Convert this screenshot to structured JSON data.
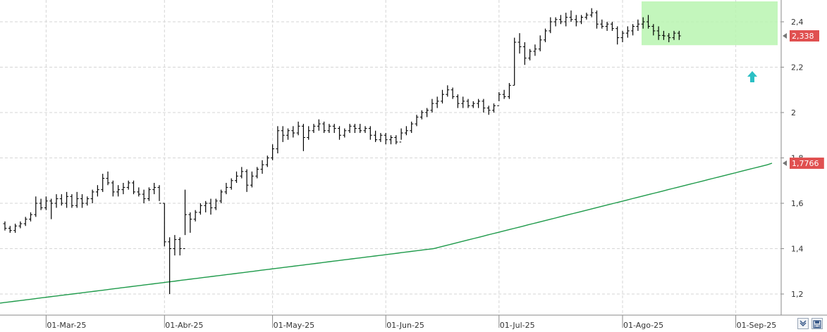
{
  "chart_data": {
    "type": "ohlc",
    "title": "",
    "xlabel": "",
    "ylabel": "",
    "ylim": [
      1.15,
      2.5
    ],
    "y_ticks": [
      {
        "value": 1.2,
        "label": "1,2"
      },
      {
        "value": 1.4,
        "label": "1,4"
      },
      {
        "value": 1.6,
        "label": "1,6"
      },
      {
        "value": 1.8,
        "label": "1,8"
      },
      {
        "value": 2.0,
        "label": "2"
      },
      {
        "value": 2.2,
        "label": "2,2"
      },
      {
        "value": 2.4,
        "label": "2,4"
      }
    ],
    "x_ticks": [
      "01-Mar-25",
      "01-Abr-25",
      "01-May-25",
      "01-Jun-25",
      "01-Jul-25",
      "01-Ago-25",
      "01-Sep-25"
    ],
    "x_tick_bar_index": [
      8,
      31,
      52,
      74,
      96,
      120,
      142
    ],
    "grid": true,
    "price_series": {
      "color": "#000000",
      "bars": [
        [
          1.51,
          1.52,
          1.48,
          1.49
        ],
        [
          1.49,
          1.5,
          1.47,
          1.48
        ],
        [
          1.48,
          1.51,
          1.47,
          1.5
        ],
        [
          1.5,
          1.52,
          1.49,
          1.51
        ],
        [
          1.51,
          1.54,
          1.5,
          1.53
        ],
        [
          1.53,
          1.56,
          1.52,
          1.55
        ],
        [
          1.55,
          1.63,
          1.54,
          1.6
        ],
        [
          1.6,
          1.62,
          1.57,
          1.58
        ],
        [
          1.58,
          1.63,
          1.57,
          1.61
        ],
        [
          1.61,
          1.62,
          1.53,
          1.6
        ],
        [
          1.6,
          1.64,
          1.58,
          1.62
        ],
        [
          1.62,
          1.64,
          1.59,
          1.6
        ],
        [
          1.6,
          1.65,
          1.58,
          1.63
        ],
        [
          1.63,
          1.64,
          1.58,
          1.59
        ],
        [
          1.59,
          1.65,
          1.58,
          1.62
        ],
        [
          1.62,
          1.64,
          1.58,
          1.6
        ],
        [
          1.6,
          1.63,
          1.59,
          1.62
        ],
        [
          1.62,
          1.66,
          1.6,
          1.65
        ],
        [
          1.65,
          1.68,
          1.63,
          1.66
        ],
        [
          1.66,
          1.73,
          1.65,
          1.71
        ],
        [
          1.71,
          1.74,
          1.68,
          1.69
        ],
        [
          1.69,
          1.7,
          1.63,
          1.65
        ],
        [
          1.65,
          1.68,
          1.63,
          1.66
        ],
        [
          1.66,
          1.69,
          1.64,
          1.67
        ],
        [
          1.67,
          1.7,
          1.66,
          1.69
        ],
        [
          1.69,
          1.7,
          1.64,
          1.65
        ],
        [
          1.65,
          1.67,
          1.63,
          1.64
        ],
        [
          1.64,
          1.66,
          1.6,
          1.62
        ],
        [
          1.62,
          1.67,
          1.61,
          1.66
        ],
        [
          1.66,
          1.69,
          1.64,
          1.67
        ],
        [
          1.67,
          1.68,
          1.61,
          1.6
        ],
        [
          1.6,
          1.6,
          1.41,
          1.43
        ],
        [
          1.43,
          1.45,
          1.2,
          1.4
        ],
        [
          1.4,
          1.46,
          1.37,
          1.44
        ],
        [
          1.44,
          1.45,
          1.37,
          1.4
        ],
        [
          1.4,
          1.66,
          1.46,
          1.55
        ],
        [
          1.55,
          1.56,
          1.47,
          1.53
        ],
        [
          1.53,
          1.57,
          1.52,
          1.56
        ],
        [
          1.56,
          1.6,
          1.55,
          1.59
        ],
        [
          1.59,
          1.61,
          1.56,
          1.6
        ],
        [
          1.6,
          1.62,
          1.55,
          1.58
        ],
        [
          1.58,
          1.62,
          1.57,
          1.61
        ],
        [
          1.61,
          1.66,
          1.6,
          1.65
        ],
        [
          1.65,
          1.69,
          1.64,
          1.67
        ],
        [
          1.67,
          1.71,
          1.66,
          1.7
        ],
        [
          1.7,
          1.74,
          1.69,
          1.72
        ],
        [
          1.72,
          1.76,
          1.71,
          1.74
        ],
        [
          1.74,
          1.75,
          1.65,
          1.68
        ],
        [
          1.68,
          1.74,
          1.67,
          1.72
        ],
        [
          1.72,
          1.76,
          1.71,
          1.75
        ],
        [
          1.75,
          1.79,
          1.73,
          1.77
        ],
        [
          1.77,
          1.81,
          1.76,
          1.8
        ],
        [
          1.8,
          1.86,
          1.79,
          1.84
        ],
        [
          1.84,
          1.94,
          1.82,
          1.92
        ],
        [
          1.92,
          1.94,
          1.87,
          1.9
        ],
        [
          1.9,
          1.93,
          1.88,
          1.92
        ],
        [
          1.92,
          1.94,
          1.89,
          1.91
        ],
        [
          1.91,
          1.96,
          1.9,
          1.94
        ],
        [
          1.94,
          1.95,
          1.83,
          1.89
        ],
        [
          1.89,
          1.94,
          1.88,
          1.92
        ],
        [
          1.92,
          1.95,
          1.91,
          1.94
        ],
        [
          1.94,
          1.97,
          1.92,
          1.95
        ],
        [
          1.95,
          1.96,
          1.91,
          1.92
        ],
        [
          1.92,
          1.95,
          1.91,
          1.94
        ],
        [
          1.94,
          1.95,
          1.91,
          1.93
        ],
        [
          1.93,
          1.94,
          1.88,
          1.9
        ],
        [
          1.9,
          1.93,
          1.89,
          1.92
        ],
        [
          1.92,
          1.95,
          1.91,
          1.94
        ],
        [
          1.94,
          1.95,
          1.91,
          1.93
        ],
        [
          1.93,
          1.95,
          1.91,
          1.92
        ],
        [
          1.92,
          1.94,
          1.91,
          1.93
        ],
        [
          1.93,
          1.94,
          1.88,
          1.9
        ],
        [
          1.9,
          1.92,
          1.87,
          1.88
        ],
        [
          1.88,
          1.91,
          1.87,
          1.9
        ],
        [
          1.9,
          1.91,
          1.86,
          1.88
        ],
        [
          1.88,
          1.9,
          1.86,
          1.89
        ],
        [
          1.89,
          1.9,
          1.86,
          1.87
        ],
        [
          1.87,
          1.93,
          1.88,
          1.91
        ],
        [
          1.91,
          1.94,
          1.9,
          1.92
        ],
        [
          1.92,
          1.96,
          1.91,
          1.95
        ],
        [
          1.95,
          1.99,
          1.94,
          1.98
        ],
        [
          1.98,
          2.01,
          1.97,
          2.0
        ],
        [
          2.0,
          2.02,
          1.98,
          2.01
        ],
        [
          2.01,
          2.06,
          2.0,
          2.04
        ],
        [
          2.04,
          2.07,
          2.02,
          2.05
        ],
        [
          2.05,
          2.1,
          2.04,
          2.08
        ],
        [
          2.08,
          2.12,
          2.07,
          2.1
        ],
        [
          2.1,
          2.11,
          2.06,
          2.07
        ],
        [
          2.07,
          2.08,
          2.02,
          2.04
        ],
        [
          2.04,
          2.07,
          2.02,
          2.05
        ],
        [
          2.05,
          2.06,
          2.02,
          2.03
        ],
        [
          2.03,
          2.05,
          2.02,
          2.04
        ],
        [
          2.04,
          2.06,
          2.02,
          2.05
        ],
        [
          2.05,
          2.06,
          2.0,
          2.02
        ],
        [
          2.02,
          2.03,
          1.99,
          2.01
        ],
        [
          2.01,
          2.04,
          2.0,
          2.03
        ],
        [
          2.03,
          2.09,
          2.05,
          2.08
        ],
        [
          2.08,
          2.1,
          2.06,
          2.07
        ],
        [
          2.07,
          2.13,
          2.06,
          2.12
        ],
        [
          2.12,
          2.33,
          2.12,
          2.31
        ],
        [
          2.31,
          2.35,
          2.26,
          2.29
        ],
        [
          2.29,
          2.31,
          2.21,
          2.24
        ],
        [
          2.24,
          2.28,
          2.23,
          2.27
        ],
        [
          2.27,
          2.3,
          2.25,
          2.28
        ],
        [
          2.28,
          2.34,
          2.27,
          2.32
        ],
        [
          2.32,
          2.37,
          2.31,
          2.36
        ],
        [
          2.36,
          2.42,
          2.35,
          2.4
        ],
        [
          2.4,
          2.42,
          2.38,
          2.41
        ],
        [
          2.41,
          2.43,
          2.39,
          2.4
        ],
        [
          2.4,
          2.44,
          2.38,
          2.42
        ],
        [
          2.42,
          2.45,
          2.4,
          2.41
        ],
        [
          2.41,
          2.43,
          2.38,
          2.4
        ],
        [
          2.4,
          2.43,
          2.39,
          2.42
        ],
        [
          2.42,
          2.44,
          2.41,
          2.43
        ],
        [
          2.43,
          2.46,
          2.42,
          2.44
        ],
        [
          2.44,
          2.45,
          2.37,
          2.39
        ],
        [
          2.39,
          2.41,
          2.37,
          2.38
        ],
        [
          2.38,
          2.4,
          2.36,
          2.39
        ],
        [
          2.39,
          2.4,
          2.36,
          2.37
        ],
        [
          2.37,
          2.38,
          2.3,
          2.33
        ],
        [
          2.33,
          2.36,
          2.31,
          2.35
        ],
        [
          2.35,
          2.38,
          2.33,
          2.36
        ],
        [
          2.36,
          2.39,
          2.34,
          2.38
        ],
        [
          2.38,
          2.41,
          2.36,
          2.39
        ],
        [
          2.39,
          2.42,
          2.37,
          2.4
        ],
        [
          2.4,
          2.43,
          2.37,
          2.38
        ],
        [
          2.38,
          2.39,
          2.34,
          2.36
        ],
        [
          2.36,
          2.38,
          2.32,
          2.34
        ],
        [
          2.34,
          2.36,
          2.32,
          2.338
        ],
        [
          2.338,
          2.35,
          2.31,
          2.33
        ],
        [
          2.33,
          2.36,
          2.32,
          2.35
        ],
        [
          2.35,
          2.36,
          2.32,
          2.338
        ]
      ]
    },
    "moving_average": {
      "color": "#1e9a4a",
      "values": [
        1.16,
        1.1625,
        1.165,
        1.1675,
        1.17,
        1.1725,
        1.175,
        1.1775,
        1.18,
        1.1825,
        1.185,
        1.1875,
        1.19,
        1.1925,
        1.195,
        1.1975,
        1.2,
        1.2025,
        1.205,
        1.2075,
        1.21,
        1.2125,
        1.215,
        1.2175,
        1.22,
        1.2225,
        1.225,
        1.2275,
        1.23,
        1.2325,
        1.235,
        1.2375,
        1.24,
        1.2425,
        1.245,
        1.2475,
        1.25,
        1.2525,
        1.255,
        1.2575,
        1.26,
        1.2625,
        1.265,
        1.2675,
        1.27,
        1.2725,
        1.275,
        1.2775,
        1.28,
        1.2825,
        1.285,
        1.2875,
        1.29,
        1.2925,
        1.295,
        1.2975,
        1.3,
        1.3025,
        1.305,
        1.3075,
        1.31,
        1.3125,
        1.315,
        1.3175,
        1.32,
        1.3225,
        1.325,
        1.3275,
        1.33,
        1.3325,
        1.335,
        1.3375,
        1.34,
        1.3425,
        1.345,
        1.3475,
        1.35,
        1.3525,
        1.355,
        1.3575,
        1.36,
        1.3625,
        1.365,
        1.3675,
        1.37,
        1.3725,
        1.375,
        1.3775,
        1.38,
        1.3825,
        1.385,
        1.3875,
        1.39,
        1.3925,
        1.395,
        1.3975,
        1.4,
        1.405,
        1.41,
        1.415,
        1.42,
        1.425,
        1.43,
        1.435,
        1.44,
        1.445,
        1.45,
        1.455,
        1.46,
        1.465,
        1.47,
        1.475,
        1.48,
        1.485,
        1.49,
        1.495,
        1.5,
        1.505,
        1.51,
        1.515,
        1.52,
        1.525,
        1.53,
        1.535,
        1.54,
        1.545,
        1.55,
        1.555,
        1.56,
        1.565,
        1.57,
        1.575,
        1.58,
        1.585,
        1.59,
        1.595,
        1.6,
        1.605,
        1.61,
        1.615,
        1.62,
        1.625,
        1.63,
        1.635,
        1.64,
        1.645,
        1.65,
        1.655,
        1.66,
        1.665,
        1.67,
        1.675,
        1.68,
        1.685,
        1.69,
        1.695,
        1.7,
        1.705,
        1.71,
        1.715,
        1.72,
        1.725,
        1.73,
        1.735,
        1.74,
        1.745,
        1.75,
        1.755,
        1.76,
        1.765,
        1.77,
        1.7766
      ]
    },
    "highlight_zone": {
      "color": "#b8f5b0",
      "from_bar": 120,
      "to_bar": 155,
      "y_from": 2.3,
      "y_to": 2.5
    },
    "signal_arrow": {
      "color": "#2bbfc4",
      "bar": 152,
      "y": 2.15,
      "direction": "up"
    },
    "last_price_badge": {
      "label": "2,338",
      "value": 2.338,
      "color": "#e05050"
    },
    "ma_badge": {
      "label": "1,7766",
      "value": 1.7766,
      "color": "#e05050"
    }
  },
  "toolbar": {
    "icons": [
      "expand-icon",
      "save-icon"
    ]
  }
}
